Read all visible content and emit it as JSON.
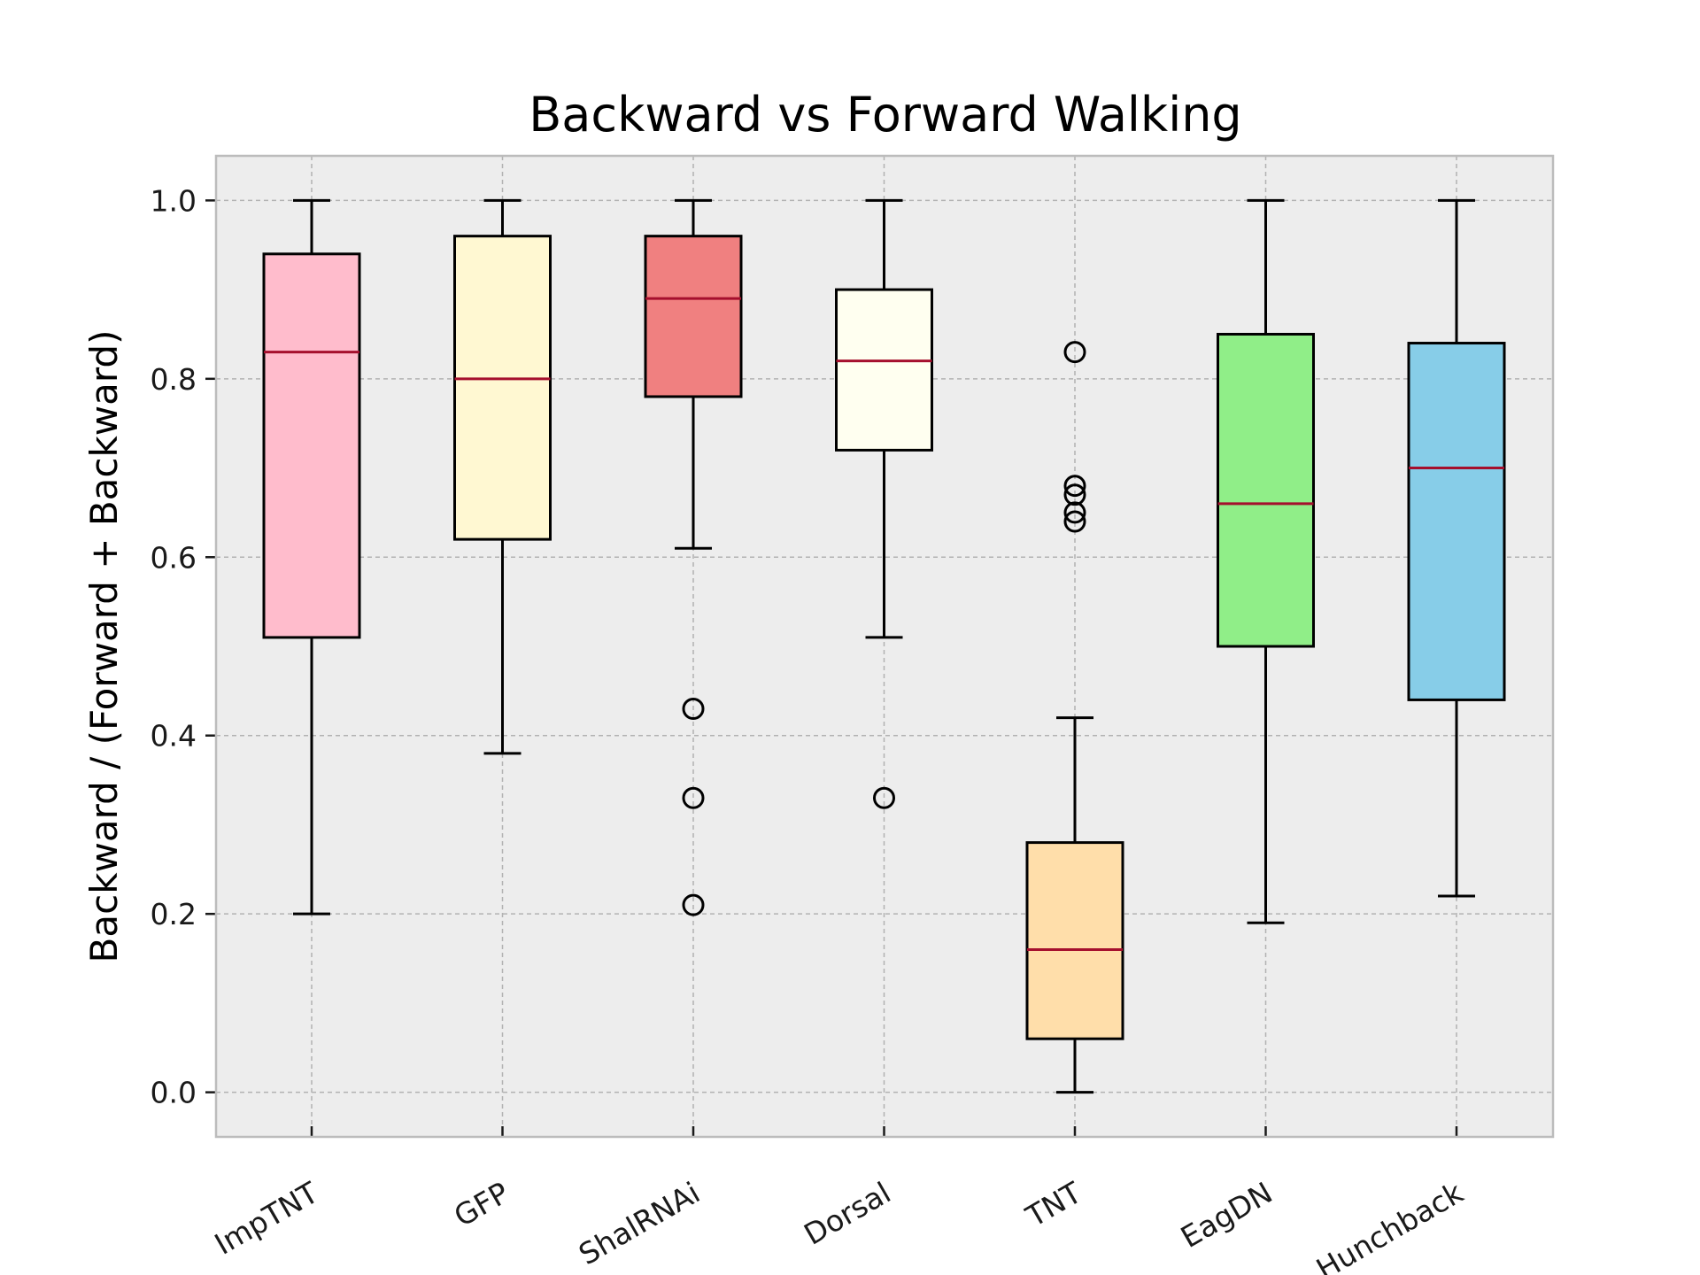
{
  "chart_data": {
    "type": "box",
    "title": "Backward vs Forward Walking",
    "xlabel": "",
    "ylabel": "Backward / (Forward + Backward)",
    "ylim": [
      -0.05,
      1.05
    ],
    "yticks": [
      "0.0",
      "0.2",
      "0.4",
      "0.6",
      "0.8",
      "1.0"
    ],
    "grid": true,
    "background_color": "#ededed",
    "median_color": "#a50f2d",
    "categories": [
      "ImpTNT",
      "GFP",
      "ShalRNAi",
      "Dorsal",
      "TNT",
      "EagDN",
      "Hunchback"
    ],
    "boxes": [
      {
        "name": "ImpTNT",
        "color": "#ffbccc",
        "whisker_low": 0.2,
        "q1": 0.51,
        "median": 0.83,
        "q3": 0.94,
        "whisker_high": 1.0,
        "outliers": []
      },
      {
        "name": "GFP",
        "color": "#fff8d2",
        "whisker_low": 0.38,
        "q1": 0.62,
        "median": 0.8,
        "q3": 0.96,
        "whisker_high": 1.0,
        "outliers": []
      },
      {
        "name": "ShalRNAi",
        "color": "#f08080",
        "whisker_low": 0.61,
        "q1": 0.78,
        "median": 0.89,
        "q3": 0.96,
        "whisker_high": 1.0,
        "outliers": [
          0.43,
          0.33,
          0.21
        ]
      },
      {
        "name": "Dorsal",
        "color": "#fffff0",
        "whisker_low": 0.51,
        "q1": 0.72,
        "median": 0.82,
        "q3": 0.9,
        "whisker_high": 1.0,
        "outliers": [
          0.33
        ]
      },
      {
        "name": "TNT",
        "color": "#ffdeaa",
        "whisker_low": 0.0,
        "q1": 0.06,
        "median": 0.16,
        "q3": 0.28,
        "whisker_high": 0.42,
        "outliers": [
          0.83,
          0.68,
          0.67,
          0.65,
          0.64
        ]
      },
      {
        "name": "EagDN",
        "color": "#90ee88",
        "whisker_low": 0.19,
        "q1": 0.5,
        "median": 0.66,
        "q3": 0.85,
        "whisker_high": 1.0,
        "outliers": []
      },
      {
        "name": "Hunchback",
        "color": "#87cde8",
        "whisker_low": 0.22,
        "q1": 0.44,
        "median": 0.7,
        "q3": 0.84,
        "whisker_high": 1.0,
        "outliers": []
      }
    ]
  }
}
